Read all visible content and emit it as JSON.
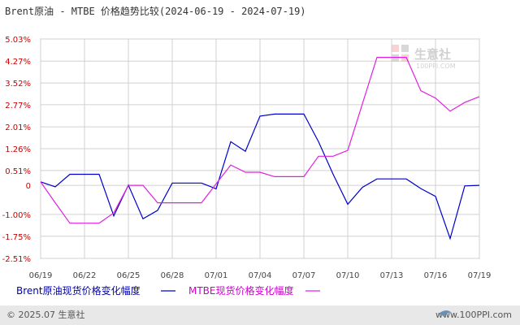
{
  "chart_data": {
    "type": "line",
    "title": "Brent原油 - MTBE 价格趋势比较(2024-06-19 - 2024-07-19)",
    "x_tick_labels": [
      "06/19",
      "06/22",
      "06/25",
      "06/28",
      "07/01",
      "07/04",
      "07/07",
      "07/10",
      "07/13",
      "07/16",
      "07/19"
    ],
    "y_tick_labels": [
      "5.03%",
      "4.27%",
      "3.52%",
      "2.77%",
      "2.01%",
      "1.26%",
      "0.51%",
      "0",
      "-1.00%",
      "-1.75%",
      "-2.51%"
    ],
    "y_tick_values": [
      5.03,
      4.27,
      3.52,
      2.77,
      2.01,
      1.26,
      0.51,
      0,
      -1.0,
      -1.75,
      -2.51
    ],
    "ylim": [
      -2.51,
      5.03
    ],
    "x_count": 31,
    "grid": true,
    "legend_position": "bottom",
    "series": [
      {
        "name": "Brent原油现货价格变化幅度",
        "color": "#0000cc",
        "x": [
          0,
          1,
          2,
          3,
          4,
          5,
          6,
          7,
          8,
          9,
          10,
          11,
          12,
          13,
          14,
          15,
          16,
          17,
          18,
          19,
          20,
          21,
          22,
          23,
          24,
          25,
          26,
          27,
          28,
          29,
          30
        ],
        "values": [
          0.12,
          -0.05,
          0.38,
          0.38,
          0.38,
          -1.05,
          0.01,
          -1.15,
          -0.86,
          0.08,
          0.08,
          0.08,
          -0.12,
          1.5,
          1.17,
          2.38,
          2.45,
          2.45,
          2.45,
          1.5,
          0.38,
          -0.65,
          -0.07,
          0.22,
          0.22,
          0.22,
          -0.11,
          -0.38,
          -1.83,
          -0.02,
          0.0
        ]
      },
      {
        "name": "MTBE现货价格变化幅度",
        "color": "#e020e0",
        "x": [
          0,
          1,
          2,
          3,
          4,
          5,
          6,
          7,
          8,
          9,
          10,
          11,
          12,
          13,
          14,
          15,
          16,
          17,
          18,
          19,
          20,
          21,
          22,
          23,
          24,
          25,
          26,
          27,
          28,
          29,
          30
        ],
        "values": [
          0.12,
          -0.6,
          -1.3,
          -1.3,
          -1.3,
          -0.95,
          0.0,
          0.0,
          -0.6,
          -0.6,
          -0.6,
          -0.6,
          0.05,
          0.7,
          0.45,
          0.45,
          0.3,
          0.3,
          0.3,
          1.0,
          1.0,
          1.2,
          2.8,
          4.4,
          4.4,
          4.4,
          3.25,
          3.0,
          2.55,
          2.85,
          3.05
        ]
      }
    ]
  },
  "watermark": {
    "cn": "生意社",
    "url": "100PPI.COM"
  },
  "footer": {
    "copyright": "© 2025.07 生意社",
    "url": "www.100PPI.com"
  }
}
